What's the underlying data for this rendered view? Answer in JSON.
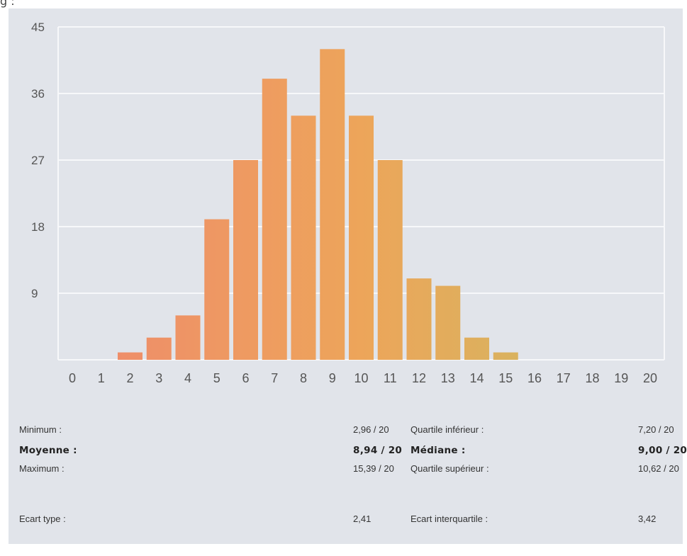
{
  "top_fragment": "g :",
  "chart_data": {
    "type": "bar",
    "categories": [
      "0",
      "1",
      "2",
      "3",
      "4",
      "5",
      "6",
      "7",
      "8",
      "9",
      "10",
      "11",
      "12",
      "13",
      "14",
      "15",
      "16",
      "17",
      "18",
      "19",
      "20"
    ],
    "values": [
      0,
      0,
      1,
      3,
      6,
      19,
      27,
      38,
      33,
      42,
      33,
      27,
      11,
      10,
      3,
      1,
      0,
      0,
      0,
      0,
      0
    ],
    "ylim": [
      0,
      45
    ],
    "yticks": [
      "45",
      "36",
      "27",
      "18",
      "9"
    ],
    "ytick_values": [
      45,
      36,
      27,
      18,
      9
    ],
    "grid": true,
    "title": "",
    "xlabel": "",
    "ylabel": "",
    "colors": {
      "gradient_start": "#ef8a6c",
      "gradient_mid": "#eda55a",
      "gradient_end": "#c9bd62",
      "grid": "#f7f8fa",
      "tick_label": "#555555"
    }
  },
  "stats": {
    "minimum_label": "Minimum :",
    "minimum_value": "2,96 / 20",
    "moyenne_label": "Moyenne :",
    "moyenne_value": "8,94 / 20",
    "maximum_label": "Maximum :",
    "maximum_value": "15,39 / 20",
    "ecart_type_label": "Ecart type :",
    "ecart_type_value": "2,41",
    "quartile_inf_label": "Quartile inférieur :",
    "quartile_inf_value": "7,20 / 20",
    "mediane_label": "Médiane :",
    "mediane_value": "9,00 / 20",
    "quartile_sup_label": "Quartile supérieur :",
    "quartile_sup_value": "10,62 / 20",
    "ecart_interquartile_label": "Ecart interquartile :",
    "ecart_interquartile_value": "3,42"
  }
}
